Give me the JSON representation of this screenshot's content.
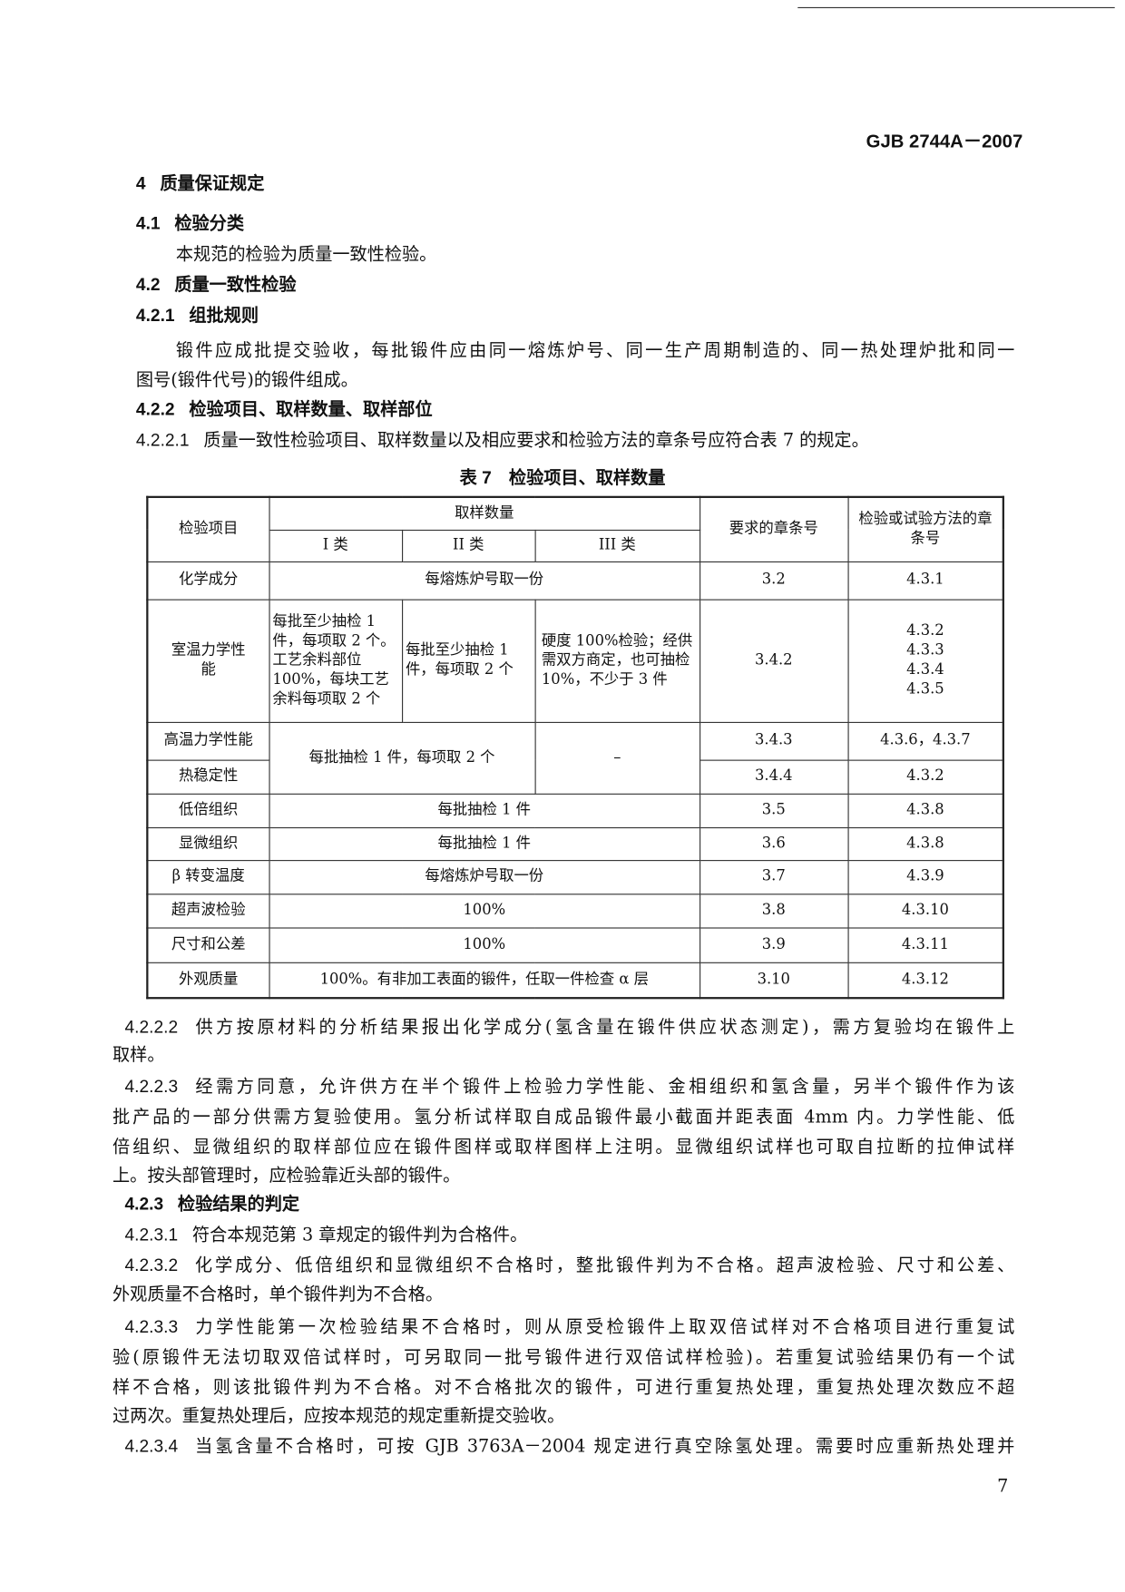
{
  "header": {
    "standard": "GJB 2744A－2007"
  },
  "sections": {
    "s4": {
      "num": "4",
      "title": "质量保证规定"
    },
    "s41": {
      "num": "4.1",
      "title": "检验分类"
    },
    "s41_text": "本规范的检验为质量一致性检验。",
    "s42": {
      "num": "4.2",
      "title": "质量一致性检验"
    },
    "s421": {
      "num": "4.2.1",
      "title": "组批规则"
    },
    "s421_l1": "锻件应成批提交验收，每批锻件应由同一熔炼炉号、同一生产周期制造的、同一热处理炉批和同一",
    "s421_l2": "图号(锻件代号)的锻件组成。",
    "s422": {
      "num": "4.2.2",
      "title": "检验项目、取样数量、取样部位"
    },
    "s4221": {
      "num": "4.2.2.1",
      "text": "质量一致性检验项目、取样数量以及相应要求和检验方法的章条号应符合表 7 的规定。"
    }
  },
  "table": {
    "caption": "表 7　检验项目、取样数量",
    "headers": {
      "item": "检验项目",
      "sampling": "取样数量",
      "c1": "I 类",
      "c2": "II 类",
      "c3": "III 类",
      "req": "要求的章条号",
      "method": "检验或试验方法的章条号"
    },
    "rows": {
      "chem": {
        "item": "化学成分",
        "sampling": "每熔炼炉号取一份",
        "req": "3.2",
        "method": "4.3.1"
      },
      "rt": {
        "item": "室温力学性能",
        "c1": "每批至少抽检 1 件，每项取 2 个。工艺余料部位 100%，每块工艺余料每项取 2 个",
        "c2": "每批至少抽检 1 件，每项取 2 个",
        "c3": "硬度 100%检验；经供需双方商定，也可抽检 10%，不少于 3 件",
        "req": "3.4.2",
        "method": "4.3.2\n4.3.3\n4.3.4\n4.3.5"
      },
      "ht": {
        "item": "高温力学性能",
        "req": "3.4.3",
        "method": "4.3.6，4.3.7"
      },
      "ts": {
        "item": "热稳定性",
        "req": "3.4.4",
        "method": "4.3.2"
      },
      "ht_ts_sampling": "每批抽检 1 件，每项取 2 个",
      "ht_ts_c3": "–",
      "macro": {
        "item": "低倍组织",
        "sampling": "每批抽检 1 件",
        "req": "3.5",
        "method": "4.3.8"
      },
      "micro": {
        "item": "显微组织",
        "sampling": "每批抽检 1 件",
        "req": "3.6",
        "method": "4.3.8"
      },
      "beta": {
        "item": "β 转变温度",
        "sampling": "每熔炼炉号取一份",
        "req": "3.7",
        "method": "4.3.9"
      },
      "ut": {
        "item": "超声波检验",
        "sampling": "100%",
        "req": "3.8",
        "method": "4.3.10"
      },
      "dim": {
        "item": "尺寸和公差",
        "sampling": "100%",
        "req": "3.9",
        "method": "4.3.11"
      },
      "vis": {
        "item": "外观质量",
        "sampling": "100%。有非加工表面的锻件，任取一件检查 α 层",
        "req": "3.10",
        "method": "4.3.12"
      }
    }
  },
  "after": {
    "p4222_num": "4.2.2.2",
    "p4222_l1": "供方按原材料的分析结果报出化学成分(氢含量在锻件供应状态测定)，需方复验均在锻件上",
    "p4222_l2": "取样。",
    "p4223_num": "4.2.2.3",
    "p4223_l1": "经需方同意，允许供方在半个锻件上检验力学性能、金相组织和氢含量，另半个锻件作为该",
    "p4223_l2": "批产品的一部分供需方复验使用。氢分析试样取自成品锻件最小截面并距表面 4mm 内。力学性能、低",
    "p4223_l3": "倍组织、显微组织的取样部位应在锻件图样或取样图样上注明。显微组织试样也可取自拉断的拉伸试样",
    "p4223_l4": "上。按头部管理时，应检验靠近头部的锻件。",
    "s423_num": "4.2.3",
    "s423_title": "检验结果的判定",
    "p4231_num": "4.2.3.1",
    "p4231_l1": "符合本规范第 3 章规定的锻件判为合格件。",
    "p4232_num": "4.2.3.2",
    "p4232_l1": "化学成分、低倍组织和显微组织不合格时，整批锻件判为不合格。超声波检验、尺寸和公差、",
    "p4232_l2": "外观质量不合格时，单个锻件判为不合格。",
    "p4233_num": "4.2.3.3",
    "p4233_l1": "力学性能第一次检验结果不合格时，则从原受检锻件上取双倍试样对不合格项目进行重复试",
    "p4233_l2": "验(原锻件无法切取双倍试样时，可另取同一批号锻件进行双倍试样检验)。若重复试验结果仍有一个试",
    "p4233_l3": "样不合格，则该批锻件判为不合格。对不合格批次的锻件，可进行重复热处理，重复热处理次数应不超",
    "p4233_l4": "过两次。重复热处理后，应按本规范的规定重新提交验收。",
    "p4234_num": "4.2.3.4",
    "p4234_l1": "当氢含量不合格时，可按 GJB 3763A－2004 规定进行真空除氢处理。需要时应重新热处理并"
  },
  "footer": {
    "page_number": "7"
  }
}
